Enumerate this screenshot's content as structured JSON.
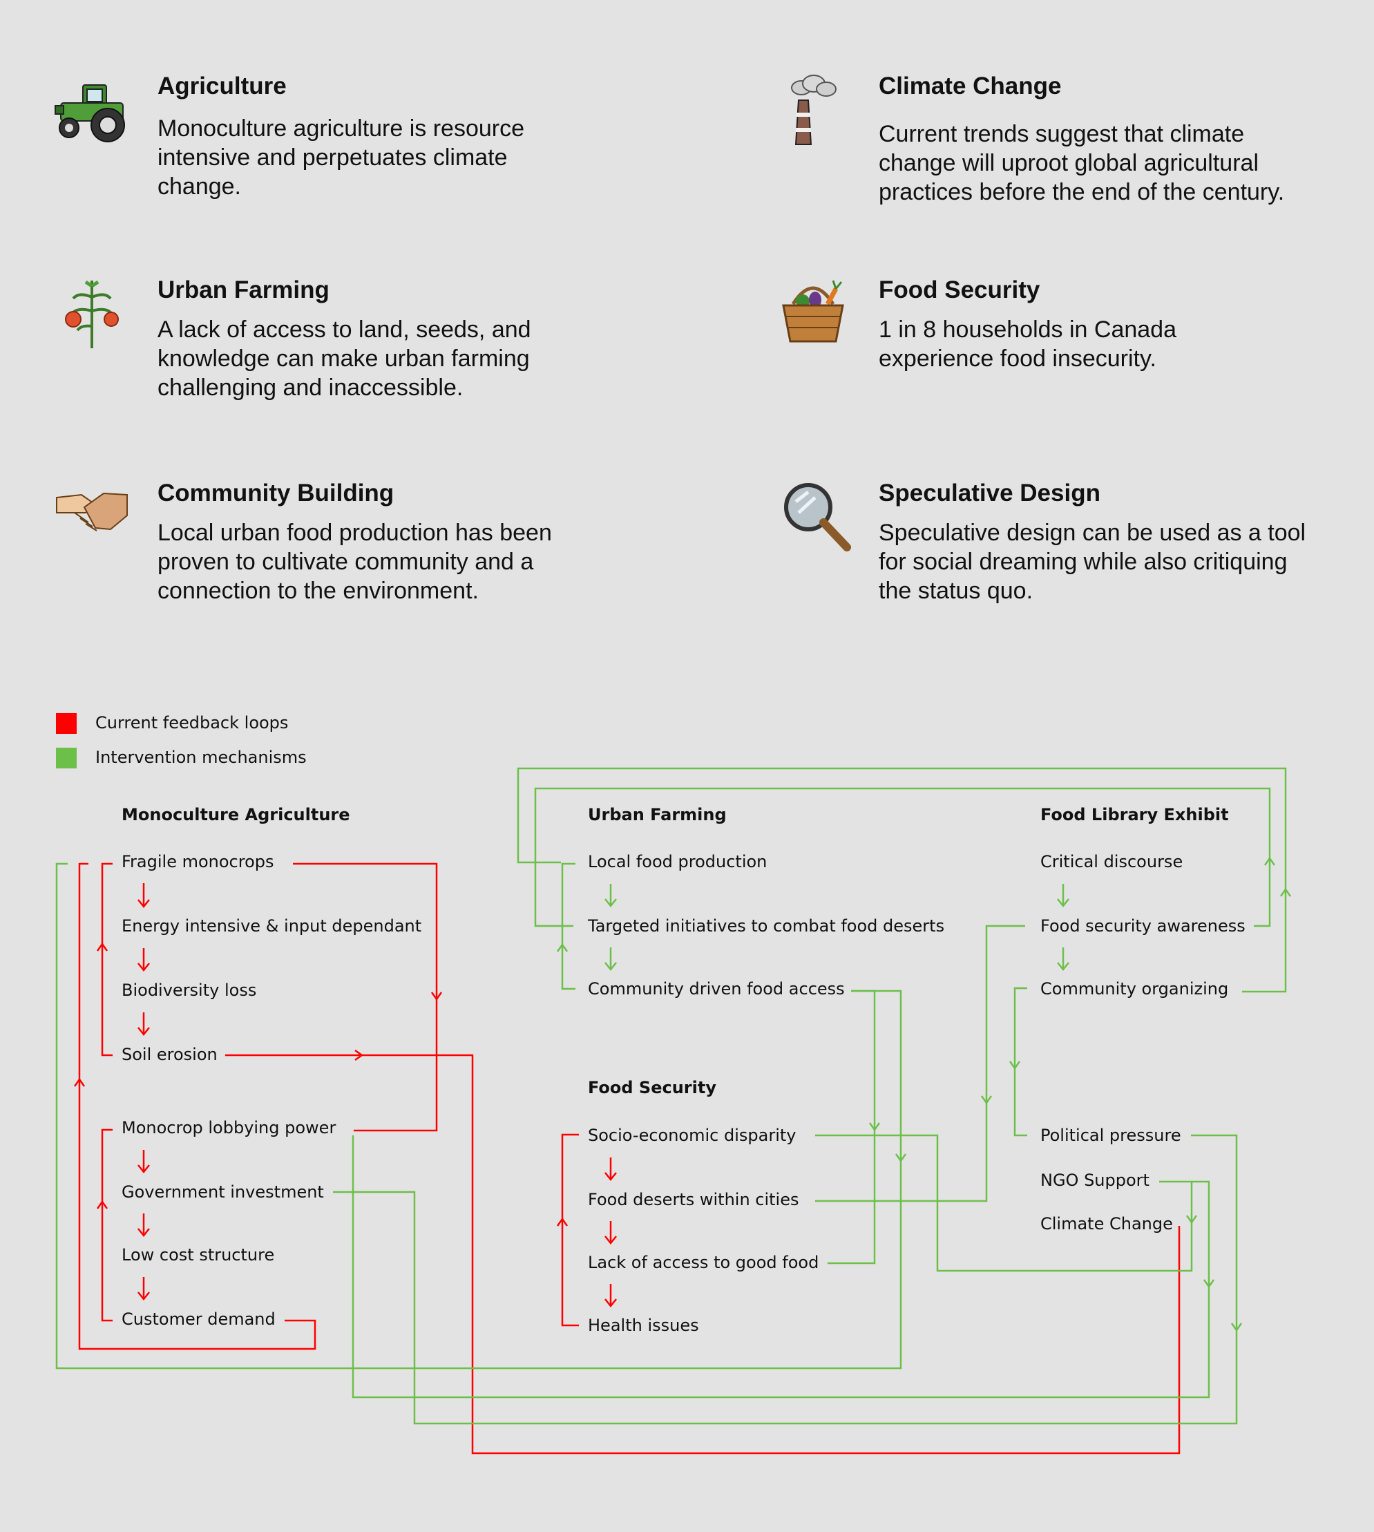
{
  "cards": [
    {
      "title": "Agriculture",
      "text": "Monoculture agriculture is resource intensive and perpetuates climate change.",
      "icon": "tractor-icon"
    },
    {
      "title": "Climate Change",
      "text": "Current trends suggest that climate change will uproot global agricultural practices before the end of the century.",
      "icon": "factory-smokestack-icon"
    },
    {
      "title": "Urban Farming",
      "text": "A lack of access to land, seeds, and knowledge can make urban farming challenging and inaccessible.",
      "icon": "tomato-plant-icon"
    },
    {
      "title": "Food Security",
      "text": "1 in 8 households in Canada experience food insecurity.",
      "icon": "vegetable-basket-icon"
    },
    {
      "title": "Community Building",
      "text": "Local urban food production has been proven to cultivate community and a connection to the environment.",
      "icon": "handshake-icon"
    },
    {
      "title": "Speculative Design",
      "text": "Speculative design can be used as a tool for social dreaming while also critiquing the status quo.",
      "icon": "magnifying-glass-icon"
    }
  ],
  "legend": [
    {
      "label": "Current feedback loops",
      "color": "#ff0000"
    },
    {
      "label": "Intervention mechanisms",
      "color": "#6cc04a"
    }
  ],
  "diagram": {
    "headings": {
      "monoculture": "Monoculture Agriculture",
      "urban_farming": "Urban Farming",
      "food_library": "Food Library Exhibit",
      "food_security": "Food Security"
    },
    "monoculture_a": [
      "Fragile monocrops",
      "Energy intensive & input dependant",
      "Biodiversity loss",
      "Soil erosion"
    ],
    "monoculture_b": [
      "Monocrop lobbying power",
      "Government investment",
      "Low cost structure",
      "Customer demand"
    ],
    "urban_farming": [
      "Local food production",
      "Targeted initiatives to combat food deserts",
      "Community driven food access"
    ],
    "food_library": [
      "Critical discourse",
      "Food security awareness",
      "Community organizing"
    ],
    "food_security": [
      "Socio-economic disparity",
      "Food deserts within cities",
      "Lack of access to good food",
      "Health issues"
    ],
    "outcomes": [
      "Political pressure",
      "NGO Support",
      "Climate Change"
    ]
  },
  "colors": {
    "red": "#ff0000",
    "green": "#6cc04a",
    "background": "#e3e3e3"
  }
}
